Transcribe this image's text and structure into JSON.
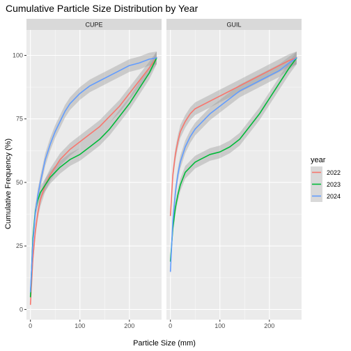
{
  "chart_data": {
    "type": "line",
    "title": "Cumulative Particle Size Distribution by Year",
    "xlabel": "Particle Size (mm)",
    "ylabel": "Cumulative Frequency (%)",
    "xlim": [
      -8,
      265
    ],
    "ylim": [
      -4,
      110
    ],
    "x_ticks": [
      0,
      100,
      200
    ],
    "y_ticks": [
      0,
      25,
      50,
      75,
      100
    ],
    "grid": true,
    "legend": {
      "title": "year",
      "position": "right"
    },
    "colors": {
      "2022": "#F8766D",
      "2023": "#00BA38",
      "2024": "#619CFF"
    },
    "ribbon_halfwidth": 2.5,
    "panels": [
      {
        "name": "CUPE",
        "series": [
          {
            "name": "2022",
            "x": [
              0,
              5,
              10,
              15,
              20,
              30,
              40,
              50,
              60,
              80,
              100,
              120,
              140,
              160,
              180,
              200,
              220,
              240,
              255
            ],
            "y": [
              2,
              20,
              31,
              38,
              43,
              49,
              53,
              56,
              59,
              63,
              66,
              69,
              72,
              76,
              80,
              85,
              90,
              95,
              99
            ]
          },
          {
            "name": "2023",
            "x": [
              0,
              5,
              10,
              15,
              20,
              30,
              40,
              50,
              60,
              80,
              100,
              120,
              140,
              160,
              180,
              200,
              220,
              240,
              255
            ],
            "y": [
              5,
              28,
              39,
              43,
              46,
              49,
              52,
              54,
              56,
              59,
              61,
              64,
              67,
              71,
              76,
              81,
              87,
              93,
              99
            ]
          },
          {
            "name": "2024",
            "x": [
              0,
              5,
              10,
              15,
              20,
              30,
              40,
              50,
              60,
              70,
              80,
              100,
              120,
              140,
              160,
              180,
              200,
              220,
              240,
              255
            ],
            "y": [
              7,
              26,
              38,
              45,
              50,
              59,
              65,
              70,
              74,
              78,
              81,
              85,
              88,
              90,
              92,
              94,
              96,
              97,
              98.5,
              99
            ]
          }
        ]
      },
      {
        "name": "GUIL",
        "series": [
          {
            "name": "2022",
            "x": [
              0,
              5,
              10,
              15,
              20,
              30,
              40,
              50,
              60,
              80,
              100,
              120,
              140,
              160,
              180,
              200,
              220,
              240,
              255
            ],
            "y": [
              37,
              53,
              61,
              66,
              70,
              74,
              77,
              79,
              80,
              82,
              84,
              86,
              88,
              90,
              92,
              94,
              96,
              98,
              99
            ]
          },
          {
            "name": "2023",
            "x": [
              0,
              5,
              10,
              15,
              20,
              30,
              40,
              50,
              60,
              80,
              100,
              120,
              140,
              160,
              180,
              200,
              220,
              240,
              255
            ],
            "y": [
              19,
              32,
              40,
              45,
              49,
              54,
              56,
              58,
              59,
              61,
              62,
              64,
              67,
              72,
              77,
              83,
              89,
              95,
              99
            ]
          },
          {
            "name": "2024",
            "x": [
              0,
              5,
              10,
              15,
              20,
              30,
              40,
              50,
              60,
              80,
              100,
              120,
              140,
              160,
              180,
              200,
              220,
              240,
              255
            ],
            "y": [
              15,
              35,
              46,
              53,
              58,
              64,
              68,
              71,
              73,
              77,
              80,
              83,
              86,
              88,
              90,
              92,
              94,
              97,
              99
            ]
          }
        ]
      }
    ]
  }
}
